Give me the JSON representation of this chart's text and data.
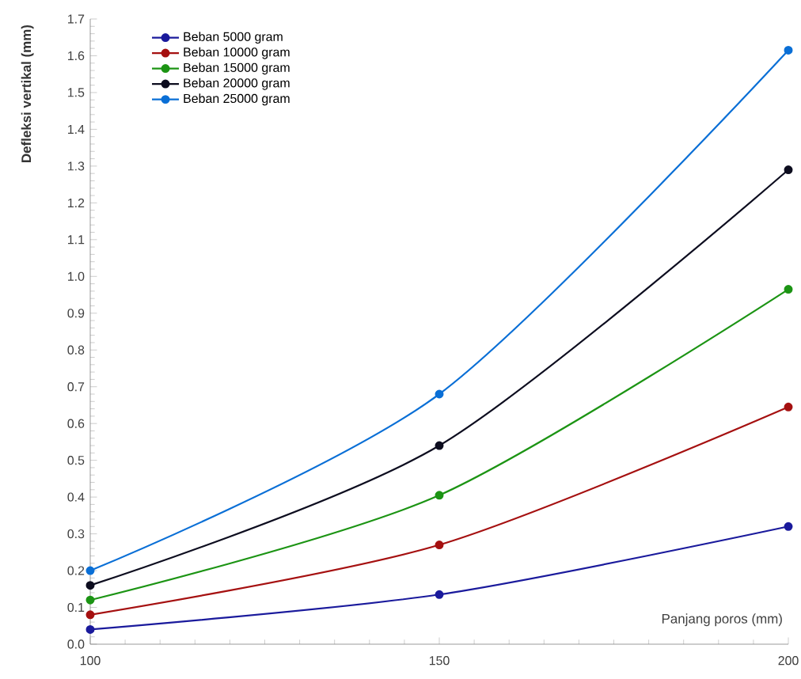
{
  "chart_data": {
    "type": "line",
    "xlabel": "Panjang poros (mm)",
    "ylabel": "Defleksi vertikal (mm)",
    "x": [
      100,
      150,
      200
    ],
    "series": [
      {
        "name": "Beban 5000 gram",
        "color": "#1a1a9c",
        "values": [
          0.04,
          0.135,
          0.32
        ]
      },
      {
        "name": "Beban 10000 gram",
        "color": "#a51010",
        "values": [
          0.08,
          0.27,
          0.645
        ]
      },
      {
        "name": "Beban 15000 gram",
        "color": "#1c9414",
        "values": [
          0.12,
          0.405,
          0.965
        ]
      },
      {
        "name": "Beban 20000 gram",
        "color": "#0d0d1f",
        "values": [
          0.16,
          0.54,
          1.29
        ]
      },
      {
        "name": "Beban 25000 gram",
        "color": "#0a6fd6",
        "values": [
          0.2,
          0.68,
          1.615
        ]
      }
    ],
    "xlim": [
      100,
      200
    ],
    "xticks": [
      100,
      150,
      200
    ],
    "ylim": [
      0,
      1.7
    ],
    "yticks": [
      {
        "value": 0,
        "label": "0.0"
      },
      {
        "value": 0.1,
        "label": "0.1"
      },
      {
        "value": 0.2,
        "label": "0.2"
      },
      {
        "value": 0.3,
        "label": "0.3"
      },
      {
        "value": 0.4,
        "label": "0.4"
      },
      {
        "value": 0.5,
        "label": "0.5"
      },
      {
        "value": 0.6,
        "label": "0.6"
      },
      {
        "value": 0.7,
        "label": "0.7"
      },
      {
        "value": 0.8,
        "label": "0.8"
      },
      {
        "value": 0.9,
        "label": "0.9"
      },
      {
        "value": 1.0,
        "label": "1.0"
      },
      {
        "value": 1.1,
        "label": "1.1"
      },
      {
        "value": 1.2,
        "label": "1.2"
      },
      {
        "value": 1.3,
        "label": "1.3"
      },
      {
        "value": 1.4,
        "label": "1.4"
      },
      {
        "value": 1.5,
        "label": "1.5"
      },
      {
        "value": 1.6,
        "label": "1.6"
      },
      {
        "value": 1.7,
        "label": "1.7"
      }
    ],
    "legend": "top left",
    "marker": "circle",
    "line_style": "solid",
    "grid": false
  }
}
